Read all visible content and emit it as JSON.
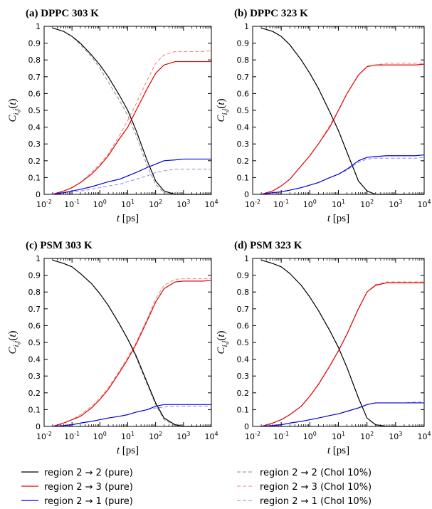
{
  "legend": {
    "items": [
      {
        "label": "region 2 → 2 (pure)",
        "color": "#000000",
        "dash": false
      },
      {
        "label": "region 2 → 3 (pure)",
        "color": "#e00000",
        "dash": false
      },
      {
        "label": "region 2 → 1 (pure)",
        "color": "#0000dd",
        "dash": false
      },
      {
        "label": "region 2 → 2 (Chol 10%)",
        "color": "#888888",
        "dash": true
      },
      {
        "label": "region 2 → 3 (Chol 10%)",
        "color": "#f08080",
        "dash": true
      },
      {
        "label": "region 2 → 1 (Chol 10%)",
        "color": "#8888ee",
        "dash": true
      }
    ]
  },
  "chart_data": [
    {
      "type": "line",
      "title": "(a) DPPC 303 K",
      "xlabel": "t [ps]",
      "ylabel": "C_{i,j}(t)",
      "xscale": "log",
      "xlim": [
        0.01,
        10000
      ],
      "ylim": [
        0,
        1
      ],
      "xticks": [
        "10-2",
        "10-1",
        "100",
        "101",
        "102",
        "103",
        "104"
      ],
      "yticks": [
        "0",
        "0.1",
        "0.2",
        "0.3",
        "0.4",
        "0.5",
        "0.6",
        "0.7",
        "0.8",
        "0.9",
        "1"
      ],
      "x": [
        0.02,
        0.05,
        0.1,
        0.2,
        0.5,
        1,
        2,
        5,
        10,
        20,
        50,
        100,
        200,
        500,
        1000,
        2000,
        5000,
        10000
      ],
      "series": [
        {
          "name": "region 2 → 2 (pure)",
          "color": "#000000",
          "dash": false,
          "values": [
            0.99,
            0.97,
            0.94,
            0.9,
            0.83,
            0.77,
            0.7,
            0.59,
            0.5,
            0.38,
            0.2,
            0.08,
            0.02,
            0.0,
            0.0,
            0.0,
            0.0,
            0.0
          ]
        },
        {
          "name": "region 2 → 3 (pure)",
          "color": "#e00000",
          "dash": false,
          "values": [
            0.0,
            0.02,
            0.04,
            0.07,
            0.12,
            0.17,
            0.23,
            0.33,
            0.4,
            0.5,
            0.63,
            0.72,
            0.77,
            0.79,
            0.79,
            0.79,
            0.79,
            0.79
          ]
        },
        {
          "name": "region 2 → 1 (pure)",
          "color": "#0000dd",
          "dash": false,
          "values": [
            0.0,
            0.01,
            0.02,
            0.03,
            0.045,
            0.06,
            0.075,
            0.09,
            0.11,
            0.13,
            0.16,
            0.18,
            0.2,
            0.205,
            0.21,
            0.21,
            0.21,
            0.21
          ]
        },
        {
          "name": "region 2 → 2 (Chol 10%)",
          "color": "#888888",
          "dash": true,
          "values": [
            0.99,
            0.97,
            0.94,
            0.89,
            0.82,
            0.75,
            0.67,
            0.56,
            0.47,
            0.35,
            0.17,
            0.06,
            0.01,
            0.0,
            0.0,
            0.0,
            0.0,
            0.0
          ]
        },
        {
          "name": "region 2 → 3 (Chol 10%)",
          "color": "#f08080",
          "dash": true,
          "values": [
            0.0,
            0.02,
            0.04,
            0.07,
            0.13,
            0.18,
            0.24,
            0.35,
            0.44,
            0.54,
            0.68,
            0.78,
            0.83,
            0.85,
            0.85,
            0.85,
            0.85,
            0.855
          ]
        },
        {
          "name": "region 2 → 1 (Chol 10%)",
          "color": "#8888ee",
          "dash": true,
          "values": [
            0.0,
            0.01,
            0.015,
            0.02,
            0.03,
            0.04,
            0.05,
            0.06,
            0.075,
            0.09,
            0.11,
            0.13,
            0.14,
            0.15,
            0.15,
            0.15,
            0.15,
            0.15
          ]
        }
      ]
    },
    {
      "type": "line",
      "title": "(b) DPPC 323 K",
      "xlabel": "t [ps]",
      "ylabel": "C_{i,j}(t)",
      "xscale": "log",
      "xlim": [
        0.01,
        10000
      ],
      "ylim": [
        0,
        1
      ],
      "xticks": [
        "10-2",
        "10-1",
        "100",
        "101",
        "102",
        "103",
        "104"
      ],
      "yticks": [
        "0",
        "0.1",
        "0.2",
        "0.3",
        "0.4",
        "0.5",
        "0.6",
        "0.7",
        "0.8",
        "0.9",
        "1"
      ],
      "x": [
        0.02,
        0.05,
        0.1,
        0.2,
        0.5,
        1,
        2,
        5,
        10,
        20,
        50,
        100,
        200,
        500,
        1000,
        2000,
        5000,
        10000
      ],
      "series": [
        {
          "name": "region 2 → 2 (pure)",
          "color": "#000000",
          "dash": false,
          "values": [
            0.99,
            0.97,
            0.94,
            0.89,
            0.8,
            0.72,
            0.63,
            0.49,
            0.38,
            0.25,
            0.08,
            0.02,
            0.0,
            0.0,
            0.0,
            0.0,
            0.0,
            0.0
          ]
        },
        {
          "name": "region 2 → 3 (pure)",
          "color": "#e00000",
          "dash": false,
          "values": [
            0.0,
            0.02,
            0.05,
            0.09,
            0.17,
            0.23,
            0.3,
            0.4,
            0.5,
            0.6,
            0.71,
            0.76,
            0.77,
            0.77,
            0.77,
            0.77,
            0.77,
            0.775
          ]
        },
        {
          "name": "region 2 → 1 (pure)",
          "color": "#0000dd",
          "dash": false,
          "values": [
            0.0,
            0.01,
            0.015,
            0.025,
            0.04,
            0.055,
            0.07,
            0.1,
            0.12,
            0.15,
            0.2,
            0.22,
            0.225,
            0.23,
            0.23,
            0.23,
            0.23,
            0.235
          ]
        },
        {
          "name": "region 2 → 2 (Chol 10%)",
          "color": "#888888",
          "dash": true,
          "values": [
            0.99,
            0.97,
            0.94,
            0.89,
            0.8,
            0.72,
            0.63,
            0.49,
            0.38,
            0.25,
            0.08,
            0.02,
            0.0,
            0.0,
            0.0,
            0.0,
            0.0,
            0.0
          ]
        },
        {
          "name": "region 2 → 3 (Chol 10%)",
          "color": "#f08080",
          "dash": true,
          "values": [
            0.0,
            0.02,
            0.05,
            0.09,
            0.17,
            0.23,
            0.3,
            0.41,
            0.5,
            0.6,
            0.71,
            0.76,
            0.77,
            0.78,
            0.78,
            0.78,
            0.78,
            0.78
          ]
        },
        {
          "name": "region 2 → 1 (Chol 10%)",
          "color": "#8888ee",
          "dash": true,
          "values": [
            0.0,
            0.01,
            0.015,
            0.025,
            0.04,
            0.055,
            0.07,
            0.1,
            0.12,
            0.145,
            0.19,
            0.21,
            0.215,
            0.215,
            0.215,
            0.215,
            0.215,
            0.22
          ]
        }
      ]
    },
    {
      "type": "line",
      "title": "(c) PSM 303 K",
      "xlabel": "t [ps]",
      "ylabel": "C_{i,j}(t)",
      "xscale": "log",
      "xlim": [
        0.01,
        10000
      ],
      "ylim": [
        0,
        1
      ],
      "xticks": [
        "10-2",
        "10-1",
        "100",
        "101",
        "102",
        "103",
        "104"
      ],
      "yticks": [
        "0",
        "0.1",
        "0.2",
        "0.3",
        "0.4",
        "0.5",
        "0.6",
        "0.7",
        "0.8",
        "0.9",
        "1"
      ],
      "x": [
        0.02,
        0.05,
        0.1,
        0.2,
        0.5,
        1,
        2,
        5,
        10,
        20,
        50,
        100,
        200,
        500,
        1000,
        2000,
        5000,
        10000
      ],
      "series": [
        {
          "name": "region 2 → 2 (pure)",
          "color": "#000000",
          "dash": false,
          "values": [
            0.99,
            0.97,
            0.95,
            0.91,
            0.85,
            0.79,
            0.72,
            0.61,
            0.52,
            0.42,
            0.26,
            0.14,
            0.05,
            0.01,
            0.0,
            0.0,
            0.0,
            0.0
          ]
        },
        {
          "name": "region 2 → 3 (pure)",
          "color": "#e00000",
          "dash": false,
          "values": [
            0.0,
            0.02,
            0.04,
            0.06,
            0.11,
            0.16,
            0.22,
            0.32,
            0.4,
            0.49,
            0.63,
            0.74,
            0.82,
            0.86,
            0.865,
            0.865,
            0.865,
            0.87
          ]
        },
        {
          "name": "region 2 → 1 (pure)",
          "color": "#0000dd",
          "dash": false,
          "values": [
            0.0,
            0.005,
            0.01,
            0.02,
            0.03,
            0.04,
            0.05,
            0.06,
            0.07,
            0.085,
            0.1,
            0.12,
            0.13,
            0.13,
            0.13,
            0.13,
            0.13,
            0.13
          ]
        },
        {
          "name": "region 2 → 2 (Chol 10%)",
          "color": "#888888",
          "dash": true,
          "values": [
            0.99,
            0.97,
            0.95,
            0.91,
            0.85,
            0.79,
            0.72,
            0.61,
            0.52,
            0.41,
            0.25,
            0.13,
            0.04,
            0.005,
            0.0,
            0.0,
            0.0,
            0.0
          ]
        },
        {
          "name": "region 2 → 3 (Chol 10%)",
          "color": "#f08080",
          "dash": true,
          "values": [
            0.0,
            0.02,
            0.04,
            0.07,
            0.12,
            0.17,
            0.23,
            0.33,
            0.41,
            0.5,
            0.64,
            0.76,
            0.84,
            0.875,
            0.88,
            0.88,
            0.88,
            0.88
          ]
        },
        {
          "name": "region 2 → 1 (Chol 10%)",
          "color": "#8888ee",
          "dash": true,
          "values": [
            0.0,
            0.005,
            0.01,
            0.02,
            0.03,
            0.04,
            0.05,
            0.06,
            0.07,
            0.085,
            0.1,
            0.11,
            0.115,
            0.12,
            0.12,
            0.12,
            0.12,
            0.12
          ]
        }
      ]
    },
    {
      "type": "line",
      "title": "(d) PSM 323 K",
      "xlabel": "t [ps]",
      "ylabel": "C_{i,j}(t)",
      "xscale": "log",
      "xlim": [
        0.01,
        10000
      ],
      "ylim": [
        0,
        1
      ],
      "xticks": [
        "10-2",
        "10-1",
        "100",
        "101",
        "102",
        "103",
        "104"
      ],
      "yticks": [
        "0",
        "0.1",
        "0.2",
        "0.3",
        "0.4",
        "0.5",
        "0.6",
        "0.7",
        "0.8",
        "0.9",
        "1"
      ],
      "x": [
        0.02,
        0.05,
        0.1,
        0.2,
        0.5,
        1,
        2,
        5,
        10,
        20,
        50,
        100,
        200,
        500,
        1000,
        2000,
        5000,
        10000
      ],
      "series": [
        {
          "name": "region 2 → 2 (pure)",
          "color": "#000000",
          "dash": false,
          "values": [
            0.99,
            0.97,
            0.95,
            0.91,
            0.84,
            0.77,
            0.69,
            0.57,
            0.47,
            0.35,
            0.17,
            0.05,
            0.01,
            0.0,
            0.0,
            0.0,
            0.0,
            0.0
          ]
        },
        {
          "name": "region 2 → 3 (pure)",
          "color": "#e00000",
          "dash": false,
          "values": [
            0.0,
            0.02,
            0.04,
            0.07,
            0.12,
            0.18,
            0.25,
            0.36,
            0.45,
            0.55,
            0.7,
            0.8,
            0.84,
            0.855,
            0.855,
            0.855,
            0.855,
            0.855
          ]
        },
        {
          "name": "region 2 → 1 (pure)",
          "color": "#0000dd",
          "dash": false,
          "values": [
            0.0,
            0.005,
            0.01,
            0.02,
            0.03,
            0.04,
            0.05,
            0.065,
            0.075,
            0.09,
            0.11,
            0.13,
            0.14,
            0.14,
            0.14,
            0.14,
            0.14,
            0.14
          ]
        },
        {
          "name": "region 2 → 2 (Chol 10%)",
          "color": "#888888",
          "dash": true,
          "values": [
            0.99,
            0.97,
            0.95,
            0.91,
            0.84,
            0.77,
            0.69,
            0.57,
            0.47,
            0.35,
            0.17,
            0.05,
            0.01,
            0.0,
            0.0,
            0.0,
            0.0,
            0.0
          ]
        },
        {
          "name": "region 2 → 3 (Chol 10%)",
          "color": "#f08080",
          "dash": true,
          "values": [
            0.0,
            0.02,
            0.04,
            0.07,
            0.12,
            0.18,
            0.25,
            0.36,
            0.45,
            0.55,
            0.7,
            0.8,
            0.845,
            0.86,
            0.86,
            0.86,
            0.86,
            0.86
          ]
        },
        {
          "name": "region 2 → 1 (Chol 10%)",
          "color": "#8888ee",
          "dash": true,
          "values": [
            0.0,
            0.005,
            0.01,
            0.02,
            0.03,
            0.04,
            0.05,
            0.065,
            0.075,
            0.09,
            0.11,
            0.13,
            0.14,
            0.14,
            0.14,
            0.14,
            0.145,
            0.145
          ]
        }
      ]
    }
  ]
}
